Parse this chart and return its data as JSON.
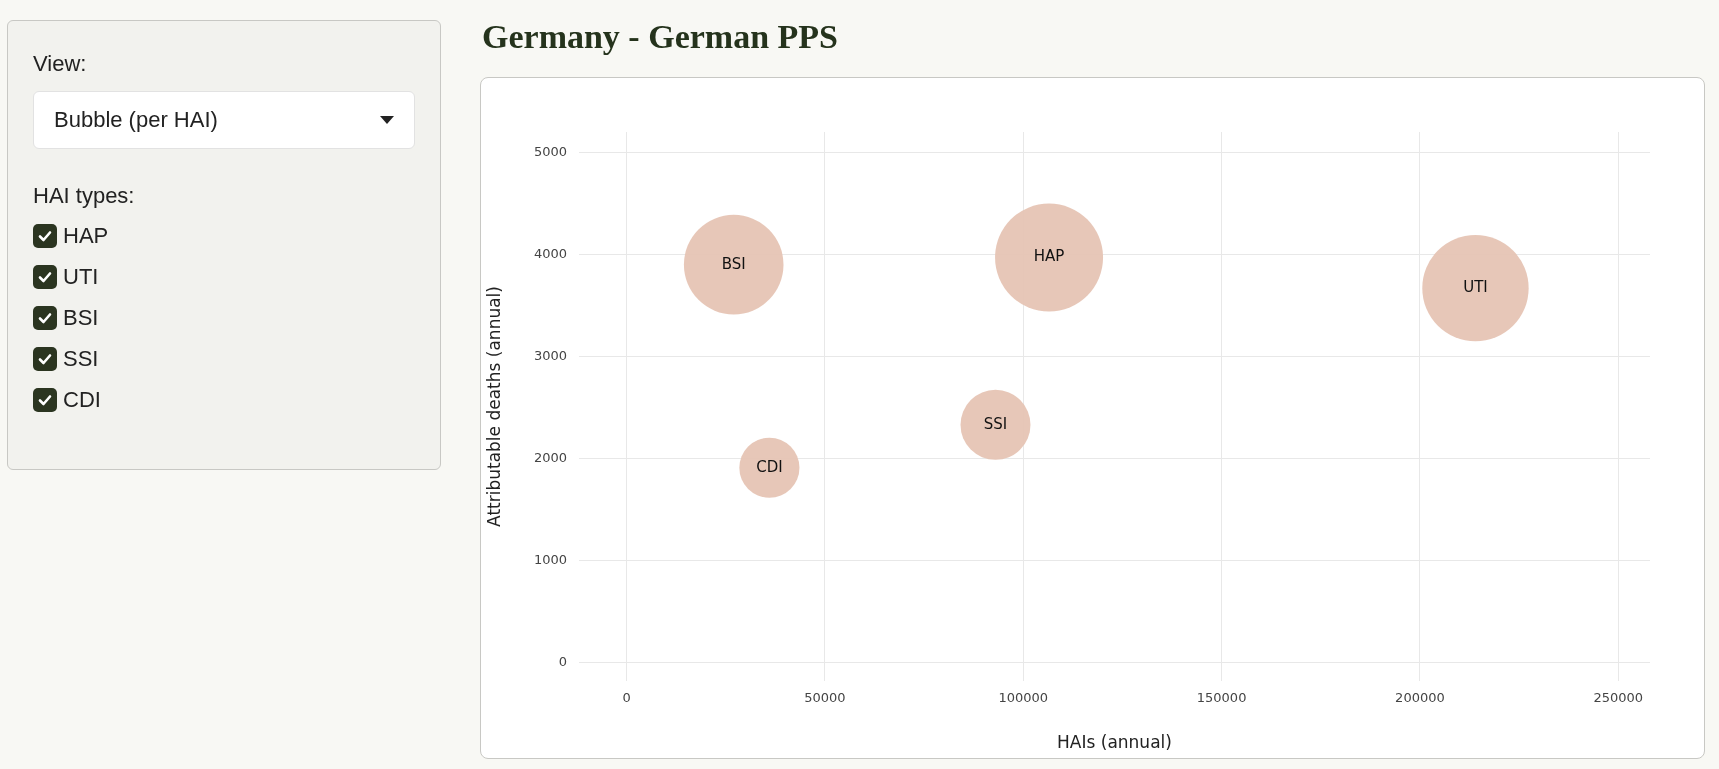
{
  "chart_data": {
    "type": "bubble",
    "title": "Germany - German PPS",
    "xlabel": "HAIs (annual)",
    "ylabel": "Attributable deaths (annual)",
    "annotations": [
      "View:",
      "Bubble (per HAI)",
      "HAI types:"
    ],
    "series": [
      {
        "name": "HAP",
        "color": "#e5c3b4",
        "x": [
          106500
        ],
        "values": [
          3970
        ],
        "sizes": [
          1
        ]
      },
      {
        "name": "UTI",
        "color": "#e5c3b4",
        "x": [
          214000
        ],
        "values": [
          3670
        ],
        "sizes": [
          0.97
        ]
      },
      {
        "name": "BSI",
        "color": "#e5c3b4",
        "x": [
          27000
        ],
        "values": [
          3900
        ],
        "sizes": [
          0.85
        ]
      },
      {
        "name": "SSI",
        "color": "#e5c3b4",
        "x": [
          93000
        ],
        "values": [
          2330
        ],
        "sizes": [
          0.42
        ]
      },
      {
        "name": "CDI",
        "color": "#e5c3b4",
        "x": [
          36000
        ],
        "values": [
          1910
        ],
        "sizes": [
          0.31
        ]
      }
    ],
    "xlim": [
      -12000,
      258000
    ],
    "ylim": [
      -180,
      5200
    ],
    "xticks": [
      0,
      50000,
      100000,
      150000,
      200000,
      250000
    ],
    "yticks": [
      0,
      1000,
      2000,
      3000,
      4000,
      5000
    ],
    "grid": true
  }
}
